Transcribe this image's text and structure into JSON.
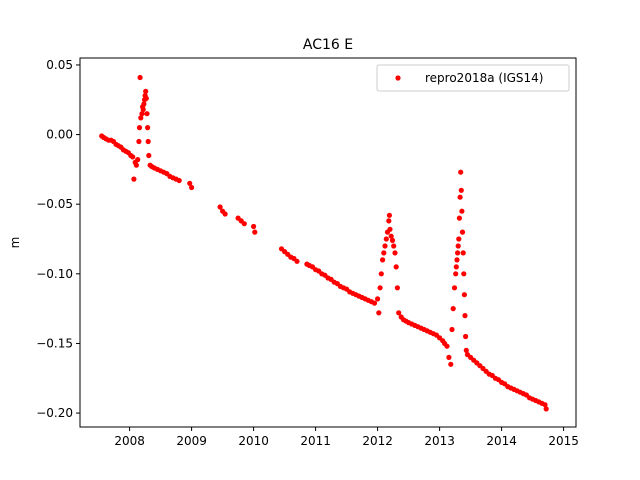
{
  "chart_data": {
    "type": "scatter",
    "title": "AC16 E",
    "xlabel": "",
    "ylabel": "m",
    "xlim": [
      2007.2,
      2015.2
    ],
    "ylim": [
      -0.21,
      0.055
    ],
    "xticks": [
      2008,
      2009,
      2010,
      2011,
      2012,
      2013,
      2014,
      2015
    ],
    "xtick_labels": [
      "2008",
      "2009",
      "2010",
      "2011",
      "2012",
      "2013",
      "2014",
      "2015"
    ],
    "yticks": [
      0.05,
      0.0,
      -0.05,
      -0.1,
      -0.15,
      -0.2
    ],
    "ytick_labels": [
      "0.05",
      "0.00",
      "−0.05",
      "−0.10",
      "−0.15",
      "−0.20"
    ],
    "grid": false,
    "legend_position": "top-right",
    "series": [
      {
        "name": "repro2018a (IGS14)",
        "color": "#ff0000",
        "marker": "circle",
        "points": [
          [
            2007.55,
            -0.001
          ],
          [
            2007.58,
            -0.002
          ],
          [
            2007.62,
            -0.003
          ],
          [
            2007.66,
            -0.004
          ],
          [
            2007.7,
            -0.004
          ],
          [
            2007.74,
            -0.005
          ],
          [
            2007.78,
            -0.007
          ],
          [
            2007.82,
            -0.008
          ],
          [
            2007.86,
            -0.009
          ],
          [
            2007.9,
            -0.011
          ],
          [
            2007.94,
            -0.012
          ],
          [
            2007.98,
            -0.013
          ],
          [
            2008.02,
            -0.015
          ],
          [
            2008.05,
            -0.016
          ],
          [
            2008.07,
            -0.032
          ],
          [
            2008.09,
            -0.02
          ],
          [
            2008.11,
            -0.022
          ],
          [
            2008.13,
            -0.018
          ],
          [
            2008.15,
            -0.005
          ],
          [
            2008.16,
            0.005
          ],
          [
            2008.17,
            0.041
          ],
          [
            2008.18,
            0.012
          ],
          [
            2008.2,
            0.015
          ],
          [
            2008.21,
            0.02
          ],
          [
            2008.22,
            0.018
          ],
          [
            2008.23,
            0.022
          ],
          [
            2008.24,
            0.025
          ],
          [
            2008.25,
            0.028
          ],
          [
            2008.26,
            0.031
          ],
          [
            2008.27,
            0.026
          ],
          [
            2008.28,
            0.015
          ],
          [
            2008.29,
            0.005
          ],
          [
            2008.3,
            -0.005
          ],
          [
            2008.31,
            -0.015
          ],
          [
            2008.33,
            -0.022
          ],
          [
            2008.36,
            -0.023
          ],
          [
            2008.4,
            -0.024
          ],
          [
            2008.45,
            -0.025
          ],
          [
            2008.5,
            -0.026
          ],
          [
            2008.55,
            -0.027
          ],
          [
            2008.6,
            -0.028
          ],
          [
            2008.65,
            -0.03
          ],
          [
            2008.7,
            -0.031
          ],
          [
            2008.75,
            -0.032
          ],
          [
            2008.8,
            -0.033
          ],
          [
            2008.97,
            -0.035
          ],
          [
            2009.0,
            -0.038
          ],
          [
            2009.46,
            -0.052
          ],
          [
            2009.5,
            -0.055
          ],
          [
            2009.54,
            -0.057
          ],
          [
            2009.75,
            -0.06
          ],
          [
            2009.8,
            -0.062
          ],
          [
            2009.85,
            -0.064
          ],
          [
            2010.0,
            -0.066
          ],
          [
            2010.02,
            -0.07
          ],
          [
            2010.45,
            -0.082
          ],
          [
            2010.5,
            -0.084
          ],
          [
            2010.55,
            -0.086
          ],
          [
            2010.6,
            -0.088
          ],
          [
            2010.65,
            -0.089
          ],
          [
            2010.7,
            -0.091
          ],
          [
            2010.86,
            -0.093
          ],
          [
            2010.9,
            -0.094
          ],
          [
            2010.95,
            -0.095
          ],
          [
            2011.0,
            -0.097
          ],
          [
            2011.05,
            -0.098
          ],
          [
            2011.1,
            -0.1
          ],
          [
            2011.15,
            -0.101
          ],
          [
            2011.2,
            -0.103
          ],
          [
            2011.25,
            -0.104
          ],
          [
            2011.3,
            -0.106
          ],
          [
            2011.35,
            -0.107
          ],
          [
            2011.4,
            -0.109
          ],
          [
            2011.45,
            -0.11
          ],
          [
            2011.5,
            -0.111
          ],
          [
            2011.55,
            -0.113
          ],
          [
            2011.6,
            -0.114
          ],
          [
            2011.65,
            -0.115
          ],
          [
            2011.7,
            -0.116
          ],
          [
            2011.75,
            -0.117
          ],
          [
            2011.8,
            -0.118
          ],
          [
            2011.85,
            -0.119
          ],
          [
            2011.9,
            -0.12
          ],
          [
            2011.95,
            -0.121
          ],
          [
            2012.0,
            -0.118
          ],
          [
            2012.02,
            -0.128
          ],
          [
            2012.04,
            -0.11
          ],
          [
            2012.06,
            -0.1
          ],
          [
            2012.08,
            -0.09
          ],
          [
            2012.1,
            -0.085
          ],
          [
            2012.12,
            -0.08
          ],
          [
            2012.14,
            -0.075
          ],
          [
            2012.16,
            -0.07
          ],
          [
            2012.18,
            -0.062
          ],
          [
            2012.19,
            -0.058
          ],
          [
            2012.2,
            -0.068
          ],
          [
            2012.22,
            -0.073
          ],
          [
            2012.24,
            -0.076
          ],
          [
            2012.26,
            -0.08
          ],
          [
            2012.28,
            -0.085
          ],
          [
            2012.3,
            -0.095
          ],
          [
            2012.32,
            -0.11
          ],
          [
            2012.34,
            -0.128
          ],
          [
            2012.38,
            -0.131
          ],
          [
            2012.42,
            -0.133
          ],
          [
            2012.46,
            -0.134
          ],
          [
            2012.5,
            -0.135
          ],
          [
            2012.55,
            -0.136
          ],
          [
            2012.6,
            -0.137
          ],
          [
            2012.65,
            -0.138
          ],
          [
            2012.7,
            -0.139
          ],
          [
            2012.75,
            -0.14
          ],
          [
            2012.8,
            -0.141
          ],
          [
            2012.85,
            -0.142
          ],
          [
            2012.9,
            -0.143
          ],
          [
            2012.95,
            -0.144
          ],
          [
            2013.0,
            -0.146
          ],
          [
            2013.05,
            -0.148
          ],
          [
            2013.08,
            -0.15
          ],
          [
            2013.12,
            -0.152
          ],
          [
            2013.15,
            -0.16
          ],
          [
            2013.18,
            -0.165
          ],
          [
            2013.2,
            -0.14
          ],
          [
            2013.22,
            -0.125
          ],
          [
            2013.24,
            -0.11
          ],
          [
            2013.26,
            -0.1
          ],
          [
            2013.27,
            -0.095
          ],
          [
            2013.28,
            -0.09
          ],
          [
            2013.29,
            -0.085
          ],
          [
            2013.3,
            -0.08
          ],
          [
            2013.31,
            -0.075
          ],
          [
            2013.32,
            -0.06
          ],
          [
            2013.33,
            -0.045
          ],
          [
            2013.34,
            -0.027
          ],
          [
            2013.35,
            -0.04
          ],
          [
            2013.36,
            -0.055
          ],
          [
            2013.37,
            -0.07
          ],
          [
            2013.38,
            -0.085
          ],
          [
            2013.39,
            -0.1
          ],
          [
            2013.4,
            -0.115
          ],
          [
            2013.41,
            -0.13
          ],
          [
            2013.42,
            -0.145
          ],
          [
            2013.43,
            -0.155
          ],
          [
            2013.45,
            -0.158
          ],
          [
            2013.5,
            -0.16
          ],
          [
            2013.55,
            -0.162
          ],
          [
            2013.6,
            -0.164
          ],
          [
            2013.65,
            -0.166
          ],
          [
            2013.7,
            -0.168
          ],
          [
            2013.75,
            -0.17
          ],
          [
            2013.8,
            -0.172
          ],
          [
            2013.85,
            -0.173
          ],
          [
            2013.9,
            -0.175
          ],
          [
            2013.95,
            -0.176
          ],
          [
            2014.0,
            -0.178
          ],
          [
            2014.05,
            -0.179
          ],
          [
            2014.1,
            -0.181
          ],
          [
            2014.15,
            -0.182
          ],
          [
            2014.2,
            -0.183
          ],
          [
            2014.25,
            -0.184
          ],
          [
            2014.3,
            -0.185
          ],
          [
            2014.35,
            -0.186
          ],
          [
            2014.4,
            -0.187
          ],
          [
            2014.45,
            -0.189
          ],
          [
            2014.5,
            -0.19
          ],
          [
            2014.55,
            -0.191
          ],
          [
            2014.6,
            -0.192
          ],
          [
            2014.65,
            -0.193
          ],
          [
            2014.7,
            -0.194
          ],
          [
            2014.72,
            -0.197
          ]
        ]
      }
    ]
  }
}
